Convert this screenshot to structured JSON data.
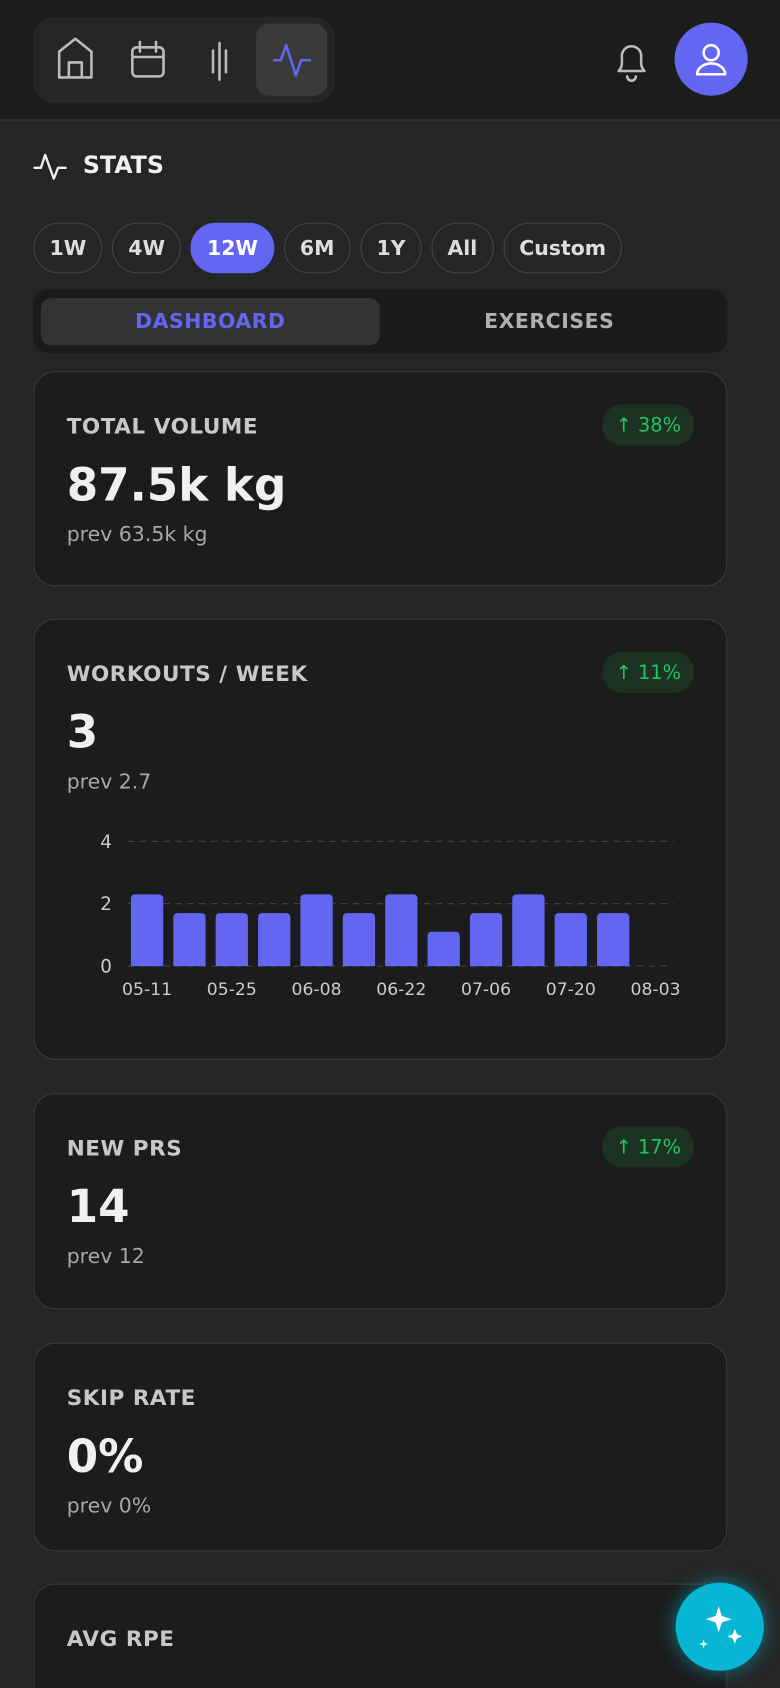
{
  "header": {
    "title": "STATS"
  },
  "ranges": [
    "1W",
    "4W",
    "12W",
    "6M",
    "1Y",
    "All",
    "Custom"
  ],
  "selected_range": 2,
  "tabs": [
    "DASHBOARD",
    "EXERCISES"
  ],
  "selected_tab": 0,
  "cards": [
    {
      "label": "TOTAL VOLUME",
      "value": "87.5k kg",
      "previous": "prev 63.5k kg",
      "change": "↑ 38%"
    },
    {
      "label": "WORKOUTS / WEEK",
      "value": "3",
      "previous": "prev 2.7",
      "change": "↑ 11%"
    },
    {
      "label": "NEW PRS",
      "value": "14",
      "previous": "prev 12",
      "change": "↑ 17%"
    },
    {
      "label": "SKIP RATE",
      "value": "0%",
      "previous": "prev 0%"
    },
    {
      "label": "AVG RPE"
    }
  ],
  "chart_data": {
    "type": "bar",
    "categories": [
      "05-11",
      null,
      "05-25",
      null,
      "06-08",
      null,
      "06-22",
      null,
      "07-06",
      null,
      "07-20",
      null,
      "08-03"
    ],
    "values": [
      2.3,
      1.7,
      1.7,
      1.7,
      2.3,
      1.7,
      2.3,
      1.1,
      1.7,
      2.3,
      1.7,
      1.7,
      null
    ],
    "color": "#6366f1",
    "ylim": [
      0,
      4
    ],
    "yticks": [
      0,
      2,
      4
    ],
    "grid": true
  }
}
